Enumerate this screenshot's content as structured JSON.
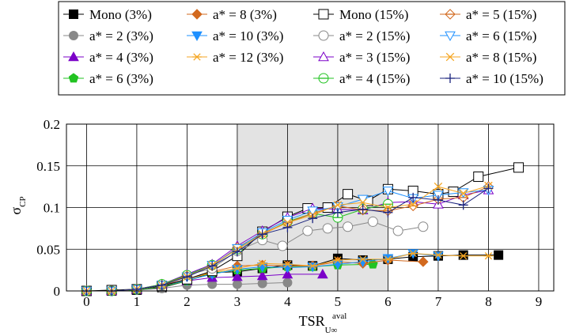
{
  "chart_data": {
    "type": "line",
    "xlabel": "TSR",
    "xlabel_sup": "aval",
    "xlabel_sub": "U∞",
    "ylabel": "σ",
    "ylabel_sub": "CP",
    "xlim": [
      -0.4,
      9.3
    ],
    "ylim": [
      0,
      0.2
    ],
    "xticks": [
      "0",
      "1",
      "2",
      "3",
      "4",
      "5",
      "6",
      "7",
      "8",
      "9"
    ],
    "yticks": [
      "0",
      "0.05",
      "0.1",
      "0.15",
      "0.2"
    ],
    "grid": true,
    "shaded_region": [
      3,
      6
    ],
    "legend_position": "top",
    "series": [
      {
        "name": "Mono (3%)",
        "color": "#000000",
        "marker": "square-filled",
        "dashed": false,
        "x": [
          0,
          0.5,
          1.0,
          1.5,
          2.0,
          2.5,
          3.0,
          3.5,
          4.0,
          4.5,
          5.0,
          5.5,
          6.0,
          6.5,
          7.0,
          7.5,
          8.2
        ],
        "y": [
          0,
          0,
          0.001,
          0.004,
          0.012,
          0.022,
          0.023,
          0.027,
          0.031,
          0.03,
          0.039,
          0.037,
          0.038,
          0.041,
          0.042,
          0.043,
          0.043
        ]
      },
      {
        "name": "a* = 2 (3%)",
        "color": "#888888",
        "marker": "circle-filled",
        "dashed": false,
        "x": [
          0,
          0.5,
          1.0,
          1.5,
          2.0,
          2.5,
          3.0,
          3.5,
          4.0
        ],
        "y": [
          0,
          0,
          0.001,
          0.003,
          0.007,
          0.008,
          0.008,
          0.009,
          0.01
        ]
      },
      {
        "name": "a* = 4 (3%)",
        "color": "#7b00c8",
        "marker": "triangle-filled",
        "dashed": false,
        "x": [
          0,
          0.5,
          1.0,
          1.5,
          2.0,
          2.5,
          3.0,
          3.5,
          4.0,
          4.7
        ],
        "y": [
          0,
          0,
          0.001,
          0.005,
          0.012,
          0.016,
          0.017,
          0.018,
          0.02,
          0.02
        ]
      },
      {
        "name": "a* = 6 (3%)",
        "color": "#22c322",
        "marker": "pentagon-filled",
        "dashed": false,
        "x": [
          0,
          0.5,
          1.0,
          1.5,
          2.0,
          2.5,
          3.0,
          3.5,
          4.0,
          4.5,
          5.0,
          5.7
        ],
        "y": [
          0,
          0,
          0.001,
          0.005,
          0.012,
          0.021,
          0.025,
          0.027,
          0.029,
          0.029,
          0.031,
          0.032
        ]
      },
      {
        "name": "a* = 8 (3%)",
        "color": "#d2691e",
        "marker": "diamond-filled",
        "dashed": false,
        "x": [
          0,
          0.5,
          1.0,
          1.5,
          2.0,
          2.5,
          3.0,
          3.5,
          4.0,
          4.5,
          5.0,
          5.5,
          6.0,
          6.7
        ],
        "y": [
          0,
          0,
          0.002,
          0.007,
          0.014,
          0.023,
          0.03,
          0.031,
          0.03,
          0.03,
          0.035,
          0.033,
          0.037,
          0.035
        ]
      },
      {
        "name": "a* = 10 (3%)",
        "color": "#1e90ff",
        "marker": "triangle-down-filled",
        "dashed": false,
        "x": [
          0,
          0.5,
          1.0,
          1.5,
          2.0,
          2.5,
          3.0,
          3.5,
          4.0,
          4.5,
          5.0,
          5.5,
          6.0,
          6.5,
          7.0
        ],
        "y": [
          0,
          0,
          0.002,
          0.006,
          0.013,
          0.02,
          0.026,
          0.029,
          0.028,
          0.029,
          0.032,
          0.035,
          0.039,
          0.045,
          0.042
        ]
      },
      {
        "name": "a* = 12 (3%)",
        "color": "#f5a623",
        "marker": "asterisk",
        "dashed": false,
        "x": [
          0,
          0.5,
          1.0,
          1.5,
          2.0,
          2.5,
          3.0,
          3.5,
          4.0,
          4.5,
          5.0,
          5.5,
          6.0,
          6.5,
          7.0,
          7.5,
          8.0
        ],
        "y": [
          0,
          0,
          0.002,
          0.006,
          0.014,
          0.022,
          0.027,
          0.033,
          0.032,
          0.03,
          0.037,
          0.038,
          0.038,
          0.045,
          0.043,
          0.042,
          0.042
        ]
      },
      {
        "name": "Mono (15%)",
        "color": "#000000",
        "marker": "square-open",
        "dashed": false,
        "x": [
          0,
          0.5,
          1.0,
          1.5,
          2.0,
          2.5,
          3.0,
          3.5,
          4.0,
          4.4,
          4.8,
          5.2,
          5.6,
          6.0,
          6.5,
          7.0,
          7.3,
          7.8,
          8.6
        ],
        "y": [
          0,
          0.001,
          0.002,
          0.006,
          0.014,
          0.024,
          0.042,
          0.071,
          0.089,
          0.099,
          0.1,
          0.116,
          0.108,
          0.122,
          0.12,
          0.116,
          0.119,
          0.137,
          0.148
        ]
      },
      {
        "name": "a* = 2 (15%)",
        "color": "#888888",
        "marker": "circle-open",
        "dashed": false,
        "x": [
          0,
          0.5,
          1.0,
          1.5,
          2.0,
          2.5,
          3.0,
          3.5,
          3.9,
          4.4,
          4.8,
          5.2,
          5.7,
          6.2,
          6.7
        ],
        "y": [
          0,
          0,
          0.002,
          0.007,
          0.019,
          0.027,
          0.048,
          0.061,
          0.054,
          0.072,
          0.075,
          0.077,
          0.083,
          0.072,
          0.077
        ]
      },
      {
        "name": "a* = 3 (15%)",
        "color": "#7b00c8",
        "marker": "triangle-open",
        "dashed": false,
        "x": [
          0,
          0.5,
          1.0,
          1.5,
          2.0,
          2.5,
          3.0,
          3.5,
          4.0,
          4.5,
          5.0,
          5.5,
          6.0,
          6.5,
          7.0,
          7.5,
          8.0
        ],
        "y": [
          0,
          0,
          0.002,
          0.008,
          0.02,
          0.032,
          0.054,
          0.072,
          0.088,
          0.099,
          0.098,
          0.097,
          0.106,
          0.107,
          0.104,
          0.115,
          0.121
        ]
      },
      {
        "name": "a* = 4 (15%)",
        "color": "#22c322",
        "marker": "circle-plus",
        "dashed": false,
        "x": [
          0,
          0.5,
          1.0,
          1.5,
          2.0,
          2.5,
          3.0,
          3.5,
          4.0,
          4.5,
          5.0,
          5.5,
          6.0
        ],
        "y": [
          0,
          0,
          0.002,
          0.008,
          0.019,
          0.031,
          0.05,
          0.068,
          0.083,
          0.093,
          0.088,
          0.098,
          0.104
        ]
      },
      {
        "name": "a* = 5 (15%)",
        "color": "#d2691e",
        "marker": "diamond-plus",
        "dashed": false,
        "x": [
          0,
          0.5,
          1.0,
          1.5,
          2.0,
          2.5,
          3.0,
          3.5,
          4.0,
          4.5,
          5.0,
          5.5,
          6.0,
          6.5,
          7.0,
          7.5,
          8.0
        ],
        "y": [
          0,
          0,
          0.002,
          0.007,
          0.018,
          0.03,
          0.052,
          0.069,
          0.082,
          0.093,
          0.102,
          0.097,
          0.096,
          0.102,
          0.11,
          0.112,
          0.125
        ]
      },
      {
        "name": "a* = 6 (15%)",
        "color": "#1e90ff",
        "marker": "triangle-down-open",
        "dashed": false,
        "x": [
          0,
          0.5,
          1.0,
          1.5,
          2.0,
          2.5,
          3.0,
          3.5,
          4.0,
          4.5,
          5.0,
          5.5,
          6.0,
          6.5,
          7.0,
          7.5,
          8.0
        ],
        "y": [
          0,
          0,
          0.002,
          0.007,
          0.017,
          0.031,
          0.051,
          0.07,
          0.085,
          0.096,
          0.101,
          0.11,
          0.12,
          0.111,
          0.115,
          0.118,
          0.121
        ]
      },
      {
        "name": "a* = 8 (15%)",
        "color": "#f5a623",
        "marker": "x",
        "dashed": false,
        "x": [
          0,
          0.5,
          1.0,
          1.5,
          2.0,
          2.5,
          3.0,
          3.5,
          4.0,
          4.5,
          5.0,
          5.5,
          6.0,
          6.5,
          7.0,
          7.5,
          8.0
        ],
        "y": [
          0,
          0,
          0.002,
          0.007,
          0.017,
          0.031,
          0.05,
          0.068,
          0.082,
          0.091,
          0.103,
          0.106,
          0.1,
          0.104,
          0.125,
          0.117,
          0.126
        ]
      },
      {
        "name": "a* = 10 (15%)",
        "color": "#1a237e",
        "marker": "plus",
        "dashed": false,
        "x": [
          0,
          0.5,
          1.0,
          1.5,
          2.0,
          2.5,
          3.0,
          3.5,
          4.0,
          4.5,
          5.0,
          5.5,
          6.0,
          6.5,
          7.0,
          7.5,
          8.0
        ],
        "y": [
          0,
          0,
          0.002,
          0.007,
          0.017,
          0.03,
          0.047,
          0.068,
          0.076,
          0.087,
          0.094,
          0.098,
          0.094,
          0.112,
          0.109,
          0.103,
          0.123
        ]
      }
    ]
  }
}
